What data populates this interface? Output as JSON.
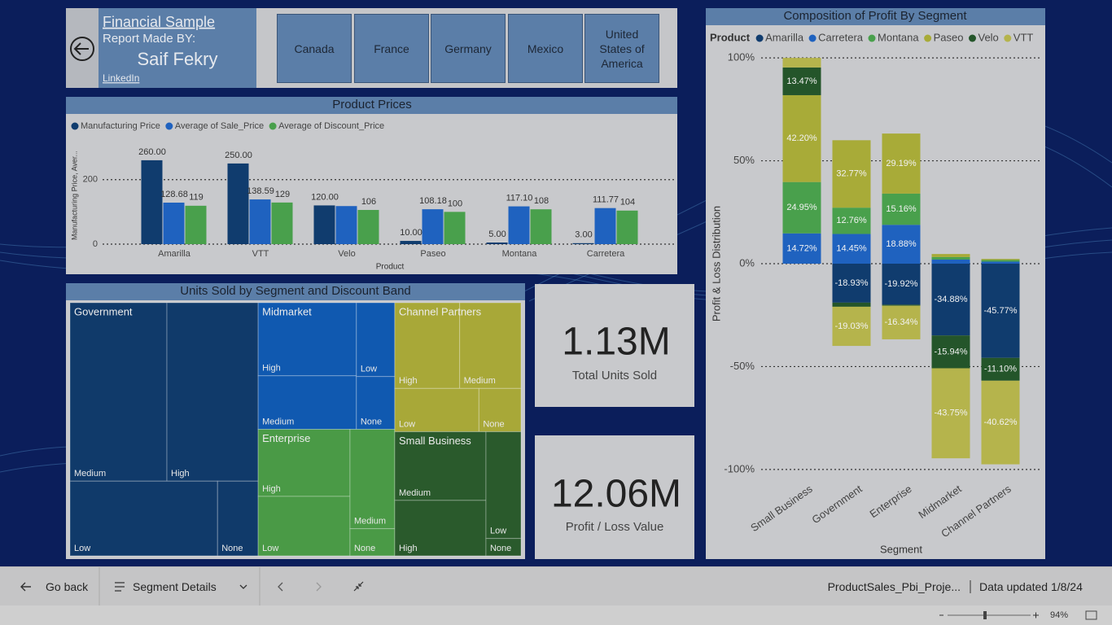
{
  "header": {
    "title": "Financial Sample",
    "made_by": "Report Made BY:",
    "author": "Saif Fekry",
    "link": "LinkedIn"
  },
  "countries": [
    "Canada",
    "France",
    "Germany",
    "Mexico",
    "United States of America"
  ],
  "cards": [
    {
      "value": "1.13M",
      "label": "Total Units Sold"
    },
    {
      "value": "12.06M",
      "label": "Profit / Loss Value"
    }
  ],
  "chart_data": [
    {
      "type": "bar",
      "title": "Product Prices",
      "x_label": "Product",
      "y_label": "Manufacturing Price, Aver...",
      "categories": [
        "Amarilla",
        "VTT",
        "Velo",
        "Paseo",
        "Montana",
        "Carretera"
      ],
      "series": [
        {
          "name": "Manufacturing Price",
          "color": "#103c6e",
          "values": [
            260,
            250,
            120,
            10,
            5,
            3
          ],
          "value_labels": [
            "260.00",
            "250.00",
            "120.00",
            "10.00",
            "5.00",
            "3.00"
          ]
        },
        {
          "name": "Average of Sale_Price",
          "color": "#1f62bf",
          "values": [
            128.68,
            138.59,
            118,
            108.18,
            117.1,
            111.77
          ],
          "value_labels": [
            "128.68",
            "138.59",
            null,
            "108.18",
            "117.10",
            "111.77"
          ]
        },
        {
          "name": "Average of Discount_Price",
          "color": "#49a04c",
          "values": [
            119,
            129,
            106,
            100,
            108,
            104
          ]
        }
      ],
      "ylim": [
        0,
        280
      ],
      "yticks": [
        0,
        200
      ],
      "grid": true
    },
    {
      "type": "treemap",
      "title": "Units Sold by Segment and Discount Band",
      "groups": [
        {
          "name": "Government",
          "color": "#103a6a",
          "labels": [
            "Medium",
            "High",
            "Low",
            "None"
          ],
          "values": [
            171000,
            161000,
            109000,
            30000
          ]
        },
        {
          "name": "Midmarket",
          "color": "#1059b0",
          "labels": [
            "High",
            "Medium",
            "Low",
            "None"
          ],
          "values": [
            71000,
            52000,
            28000,
            20000
          ]
        },
        {
          "name": "Enterprise",
          "color": "#4a9a46",
          "labels": [
            "High",
            "Low",
            "Medium",
            "None"
          ],
          "values": [
            61000,
            54000,
            44000,
            12000
          ]
        },
        {
          "name": "Channel Partners",
          "color": "#a8a838",
          "labels": [
            "High",
            "Medium",
            "Low",
            "None"
          ],
          "values": [
            55000,
            52000,
            36000,
            18000
          ]
        },
        {
          "name": "Small Business",
          "color": "#2a5a2c",
          "labels": [
            "Medium",
            "High",
            "Low",
            "None"
          ],
          "values": [
            62000,
            50000,
            37000,
            6000
          ]
        }
      ]
    },
    {
      "type": "bar",
      "stacked": true,
      "title": "Composition of Profit By Segment",
      "legend_title": "Product",
      "x_label": "Segment",
      "y_label": "Profit & Loss Distribution",
      "categories": [
        "Small Business",
        "Government",
        "Enterprise",
        "Midmarket",
        "Channel Partners"
      ],
      "series": [
        {
          "name": "Amarilla",
          "color": "#103c6e",
          "values": [
            0,
            -18.93,
            -19.92,
            -34.88,
            -45.77
          ],
          "value_labels": [
            null,
            "-18.93%",
            "-19.92%",
            "-34.88%",
            "-45.77%"
          ]
        },
        {
          "name": "Carretera",
          "color": "#1f62bf",
          "values": [
            14.72,
            14.45,
            18.88,
            2.0,
            1.0
          ],
          "value_labels": [
            "14.72%",
            "14.45%",
            "18.88%",
            null,
            null
          ]
        },
        {
          "name": "Montana",
          "color": "#49a04c",
          "values": [
            24.95,
            12.76,
            15.16,
            1.2,
            0.8
          ],
          "value_labels": [
            "24.95%",
            "12.76%",
            "15.16%",
            null,
            null
          ]
        },
        {
          "name": "Paseo",
          "color": "#a8ab38",
          "values": [
            42.2,
            32.77,
            29.19,
            1.5,
            0.5
          ],
          "value_labels": [
            "42.20%",
            "32.77%",
            "29.19%",
            null,
            null
          ]
        },
        {
          "name": "Velo",
          "color": "#24552a",
          "values": [
            13.47,
            -2.0,
            -0.5,
            -15.94,
            -11.1
          ],
          "value_labels": [
            "13.47%",
            null,
            null,
            "-15.94%",
            "-11.10%"
          ]
        },
        {
          "name": "VTT",
          "color": "#b5b44c",
          "values": [
            4.66,
            -19.03,
            -16.34,
            -43.75,
            -40.62
          ],
          "value_labels": [
            null,
            "-19.03%",
            "-16.34%",
            "-43.75%",
            "-40.62%"
          ]
        }
      ],
      "ylim": [
        -104,
        104
      ],
      "yticks": [
        {
          "value": 100,
          "label": "100%"
        },
        {
          "value": 50,
          "label": "50%"
        },
        {
          "value": 0,
          "label": "0%"
        },
        {
          "value": -50,
          "label": "-50%"
        },
        {
          "value": -100,
          "label": "-100%"
        }
      ],
      "grid": true
    }
  ],
  "footer": {
    "back": "Go back",
    "page": "Segment Details",
    "file": "ProductSales_Pbi_Proje...",
    "updated": "Data updated 1/8/24",
    "zoom": "94%"
  }
}
